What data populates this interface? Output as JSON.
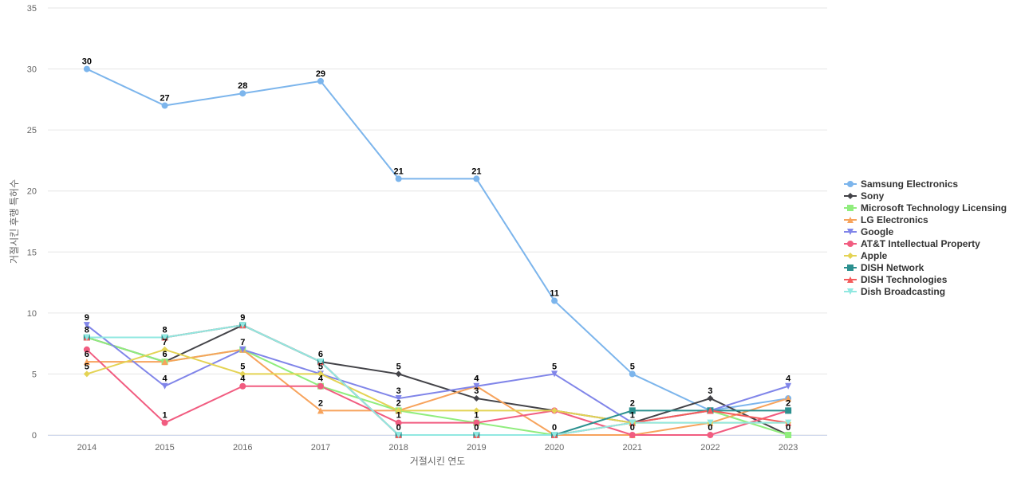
{
  "chart_data": {
    "type": "line",
    "title": "",
    "xlabel": "거절시킨 연도",
    "ylabel": "거절시킨 후행 특허수",
    "x": [
      "2014",
      "2015",
      "2016",
      "2017",
      "2018",
      "2019",
      "2020",
      "2021",
      "2022",
      "2023"
    ],
    "ylim": [
      0,
      35
    ],
    "yticks": [
      0,
      5,
      10,
      15,
      20,
      25,
      30,
      35
    ],
    "grid": true,
    "legend_position": "right",
    "series": [
      {
        "name": "Samsung Electronics",
        "color": "#7cb5ec",
        "marker": "circle",
        "values": [
          30,
          27,
          28,
          29,
          21,
          21,
          11,
          5,
          2,
          3
        ],
        "labels_shown": [
          true,
          true,
          true,
          true,
          true,
          true,
          true,
          true,
          false,
          false
        ]
      },
      {
        "name": "Sony",
        "color": "#434348",
        "marker": "diamond",
        "values": [
          8,
          6,
          9,
          6,
          5,
          3,
          2,
          1,
          3,
          0
        ],
        "labels_shown": [
          true,
          true,
          true,
          true,
          true,
          true,
          false,
          false,
          true,
          true
        ]
      },
      {
        "name": "Microsoft Technology Licensing",
        "color": "#90ed7d",
        "marker": "square",
        "values": [
          8,
          6,
          7,
          4,
          2,
          1,
          0,
          1,
          2,
          0
        ],
        "labels_shown": [
          false,
          false,
          false,
          true,
          false,
          false,
          false,
          false,
          false,
          false
        ]
      },
      {
        "name": "LG Electronics",
        "color": "#f7a35c",
        "marker": "triangle",
        "values": [
          6,
          6,
          7,
          2,
          2,
          4,
          0,
          0,
          1,
          3
        ],
        "labels_shown": [
          true,
          false,
          false,
          true,
          true,
          true,
          false,
          false,
          false,
          false
        ]
      },
      {
        "name": "Google",
        "color": "#8085e9",
        "marker": "triangle-down",
        "values": [
          9,
          4,
          7,
          5,
          3,
          4,
          5,
          1,
          2,
          4
        ],
        "labels_shown": [
          true,
          true,
          true,
          true,
          true,
          true,
          true,
          true,
          false,
          true
        ]
      },
      {
        "name": "AT&T Intellectual Property",
        "color": "#f15c80",
        "marker": "circle",
        "values": [
          7,
          1,
          4,
          4,
          1,
          1,
          2,
          0,
          0,
          2
        ],
        "labels_shown": [
          false,
          true,
          true,
          false,
          true,
          true,
          false,
          true,
          true,
          false
        ]
      },
      {
        "name": "Apple",
        "color": "#e4d354",
        "marker": "diamond",
        "values": [
          5,
          7,
          5,
          5,
          2,
          2,
          2,
          1,
          1,
          1
        ],
        "labels_shown": [
          true,
          true,
          true,
          false,
          false,
          false,
          false,
          false,
          false,
          false
        ]
      },
      {
        "name": "DISH Network",
        "color": "#2b908f",
        "marker": "square",
        "values": [
          8,
          8,
          9,
          6,
          0,
          0,
          0,
          2,
          2,
          2
        ],
        "labels_shown": [
          false,
          true,
          false,
          false,
          true,
          true,
          true,
          true,
          false,
          true
        ]
      },
      {
        "name": "DISH Technologies",
        "color": "#f45b5b",
        "marker": "triangle",
        "values": [
          8,
          8,
          9,
          6,
          0,
          0,
          0,
          1,
          2,
          1
        ],
        "labels_shown": [
          false,
          false,
          false,
          false,
          false,
          false,
          false,
          false,
          false,
          false
        ]
      },
      {
        "name": "Dish Broadcasting",
        "color": "#91e8e1",
        "marker": "triangle-down",
        "values": [
          8,
          8,
          9,
          6,
          0,
          0,
          0,
          1,
          1,
          1
        ],
        "labels_shown": [
          false,
          false,
          false,
          false,
          false,
          false,
          false,
          false,
          false,
          false
        ]
      }
    ]
  }
}
